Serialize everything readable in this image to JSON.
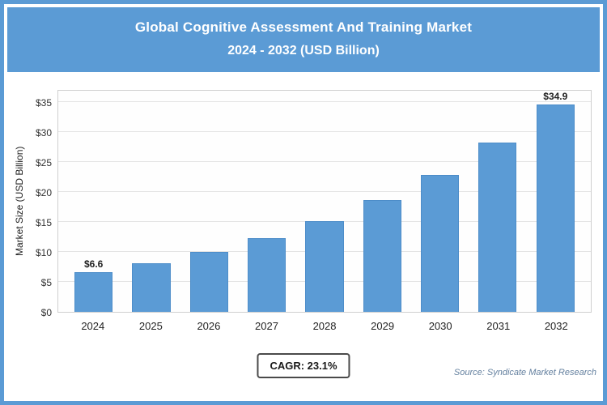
{
  "header": {
    "title_line1": "Global Cognitive Assessment And Training Market",
    "title_line2": "2024 - 2032 (USD Billion)"
  },
  "chart_data": {
    "type": "bar",
    "title": "Global Cognitive Assessment And Training Market 2024 - 2032 (USD Billion)",
    "categories": [
      "2024",
      "2025",
      "2026",
      "2027",
      "2028",
      "2029",
      "2030",
      "2031",
      "2032"
    ],
    "values": [
      6.6,
      8.1,
      10.0,
      12.3,
      15.1,
      18.6,
      22.9,
      28.2,
      34.9
    ],
    "xlabel": "",
    "ylabel": "Market Size (USD Billion)",
    "ylim": [
      0,
      35
    ],
    "ytick_step": 5,
    "ytick_prefix": "$",
    "grid": "horizontal",
    "legend": "none",
    "bar_color": "#5b9bd5",
    "annotations": [
      {
        "index": 0,
        "text": "$6.6"
      },
      {
        "index": 8,
        "text": "$34.9"
      }
    ]
  },
  "footer": {
    "cagr_label": "CAGR: 23.1%",
    "source": "Source: Syndicate Market Research"
  },
  "colors": {
    "accent": "#5b9bd5",
    "header_text": "#ffffff",
    "gridline": "#e4e4e4",
    "cagr_border": "#4a4a4a",
    "source_text": "#64809f"
  }
}
